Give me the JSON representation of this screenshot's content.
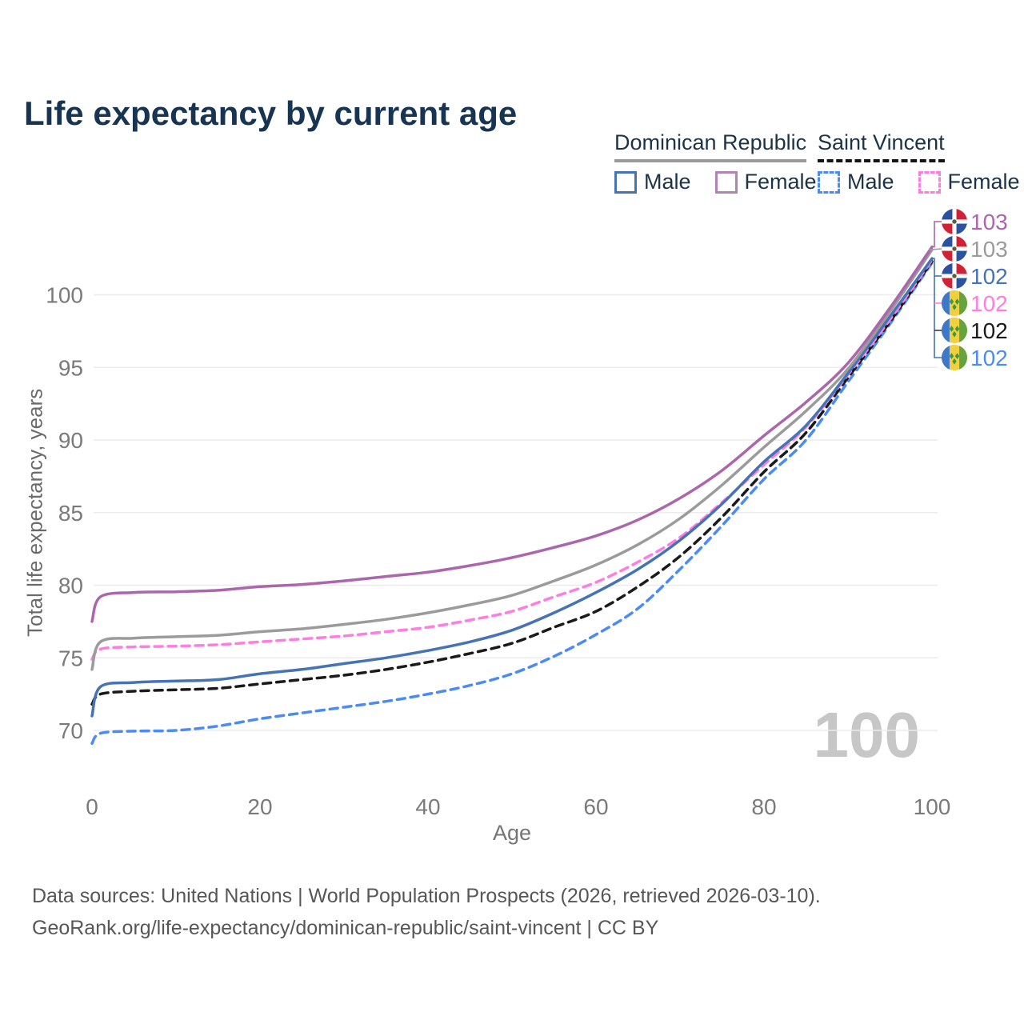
{
  "title": "Life expectancy by current age",
  "watermark_age": "100",
  "legend": {
    "groups": [
      {
        "label": "Dominican Republic",
        "underline_style": "solid",
        "underline_color": "#9b9b9b",
        "items": [
          {
            "label": "Male",
            "swatch_color": "#4573b5",
            "line_style": "solid"
          },
          {
            "label": "Female",
            "swatch_color": "#b283b5",
            "line_style": "solid"
          }
        ]
      },
      {
        "label": "Saint Vincent",
        "underline_style": "dashed",
        "underline_color": "#141414",
        "items": [
          {
            "label": "Male",
            "swatch_color": "#4b8bf5",
            "line_style": "dashed"
          },
          {
            "label": "Female",
            "swatch_color": "#ff7de0",
            "line_style": "dashed"
          }
        ]
      }
    ]
  },
  "footer": {
    "line1": "Data sources: United Nations | World Population Prospects (2026, retrieved 2026-03-10).",
    "line2": "GeoRank.org/life-expectancy/dominican-republic/saint-vincent | CC BY"
  },
  "colors": {
    "grid": "#ebebeb",
    "tick_text": "#7a7a7a",
    "leader_blue": "#4573b5",
    "leader_purple": "#ab66ac",
    "leader_gray": "#9b9b9b",
    "leader_pink": "#ff7de0",
    "leader_black": "#3a3a3a"
  },
  "chart_data": {
    "type": "line",
    "title": "Life expectancy by current age",
    "xlabel": "Age",
    "ylabel": "Total life expectancy, years",
    "xlim": [
      0,
      100
    ],
    "ylim": [
      67.5,
      104.5
    ],
    "xticks": [
      0,
      20,
      40,
      60,
      80,
      100
    ],
    "yticks": [
      70,
      75,
      80,
      85,
      90,
      95,
      100
    ],
    "grid": "horizontal-only",
    "legend_position": "top-right",
    "x": [
      0,
      1,
      5,
      10,
      15,
      20,
      25,
      30,
      35,
      40,
      45,
      50,
      55,
      60,
      65,
      70,
      75,
      80,
      85,
      90,
      95,
      100
    ],
    "series": [
      {
        "id": "dr-female",
        "name": "Dominican Republic Female",
        "flag": "dominican-republic",
        "line": "solid",
        "color": "#ab66ac",
        "end_label": "103",
        "values": [
          77.5,
          79.2,
          79.5,
          79.55,
          79.65,
          79.9,
          80.05,
          80.3,
          80.6,
          80.9,
          81.35,
          81.9,
          82.6,
          83.4,
          84.5,
          86.0,
          87.9,
          90.3,
          92.6,
          95.3,
          99.1,
          103.3
        ]
      },
      {
        "id": "dr-total",
        "name": "Dominican Republic Both sexes",
        "flag": "dominican-republic",
        "line": "solid",
        "color": "#9b9b9b",
        "end_label": "103",
        "values": [
          74.2,
          76.1,
          76.35,
          76.45,
          76.55,
          76.8,
          77.0,
          77.3,
          77.65,
          78.1,
          78.65,
          79.3,
          80.3,
          81.4,
          82.8,
          84.6,
          86.9,
          89.5,
          92.0,
          94.9,
          98.85,
          103.1
        ]
      },
      {
        "id": "dr-male",
        "name": "Dominican Republic Male",
        "flag": "dominican-republic",
        "line": "solid",
        "color": "#4573b5",
        "end_label": "102",
        "values": [
          71.0,
          73.0,
          73.3,
          73.4,
          73.5,
          73.9,
          74.2,
          74.6,
          75.0,
          75.5,
          76.1,
          76.9,
          78.1,
          79.5,
          81.1,
          83.1,
          85.6,
          88.5,
          91.0,
          94.6,
          98.5,
          102.5
        ]
      },
      {
        "id": "sv-female",
        "name": "Saint Vincent Female",
        "flag": "saint-vincent",
        "line": "dashed",
        "color": "#ff7de0",
        "end_label": "102",
        "values": [
          74.9,
          75.6,
          75.75,
          75.8,
          75.9,
          76.1,
          76.3,
          76.5,
          76.8,
          77.1,
          77.6,
          78.2,
          79.2,
          80.2,
          81.6,
          83.3,
          85.7,
          88.3,
          90.9,
          94.5,
          98.3,
          102.4
        ]
      },
      {
        "id": "sv-total",
        "name": "Saint Vincent Both sexes",
        "flag": "saint-vincent",
        "line": "dashed",
        "color": "#1a1a1a",
        "end_label": "102",
        "values": [
          71.8,
          72.5,
          72.7,
          72.8,
          72.9,
          73.2,
          73.5,
          73.8,
          74.2,
          74.7,
          75.3,
          76.0,
          77.1,
          78.2,
          79.9,
          82.0,
          84.7,
          87.8,
          90.5,
          94.3,
          98.15,
          102.3
        ]
      },
      {
        "id": "sv-male",
        "name": "Saint Vincent Male",
        "flag": "saint-vincent",
        "line": "dashed",
        "color": "#4b8bf5",
        "end_label": "102",
        "values": [
          69.1,
          69.8,
          69.95,
          70.0,
          70.3,
          70.8,
          71.2,
          71.6,
          72.0,
          72.5,
          73.1,
          73.9,
          75.1,
          76.6,
          78.4,
          81.1,
          84.1,
          87.3,
          90.0,
          94.0,
          98.0,
          102.2
        ]
      }
    ]
  }
}
